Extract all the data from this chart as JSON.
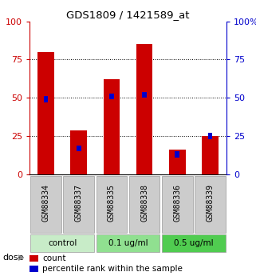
{
  "title": "GDS1809 / 1421589_at",
  "samples": [
    "GSM88334",
    "GSM88337",
    "GSM88335",
    "GSM88338",
    "GSM88336",
    "GSM88339"
  ],
  "count_values": [
    80,
    29,
    62,
    85,
    16,
    25
  ],
  "percentile_values": [
    49,
    17,
    51,
    52,
    13,
    25
  ],
  "groups": [
    {
      "label": "control",
      "indices": [
        0,
        1
      ],
      "color": "#c8ecc8"
    },
    {
      "label": "0.1 ug/ml",
      "indices": [
        2,
        3
      ],
      "color": "#90e090"
    },
    {
      "label": "0.5 ug/ml",
      "indices": [
        4,
        5
      ],
      "color": "#50cc50"
    }
  ],
  "bar_width": 0.5,
  "bar_color_count": "#cc0000",
  "bar_color_pct": "#0000cc",
  "left_axis_color": "#cc0000",
  "right_axis_color": "#0000cc",
  "yticks": [
    0,
    25,
    50,
    75,
    100
  ],
  "ylim": [
    0,
    100
  ],
  "sample_box_color": "#cccccc",
  "legend_count_label": "count",
  "legend_pct_label": "percentile rank within the sample",
  "fig_width": 3.21,
  "fig_height": 3.45,
  "dpi": 100
}
